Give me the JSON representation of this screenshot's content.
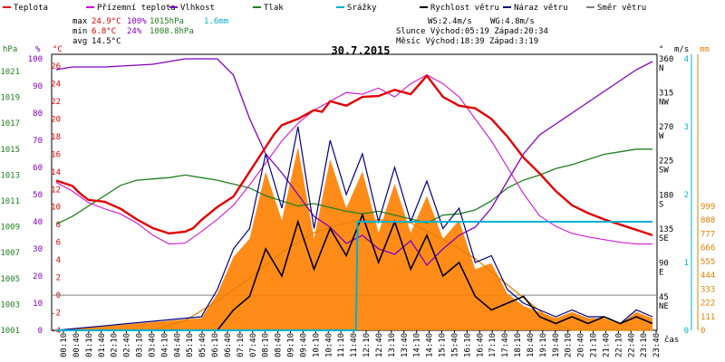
{
  "chart_data": {
    "type": "line",
    "title": "30.7.2015",
    "legend": [
      {
        "name": "Teplota",
        "color": "#e00000"
      },
      {
        "name": "Přízemní teplota",
        "color": "#d000d0"
      },
      {
        "name": "Vlhkost",
        "color": "#8000c0"
      },
      {
        "name": "Tlak",
        "color": "#208020"
      },
      {
        "name": "Srážky",
        "color": "#00b0d0"
      },
      {
        "name": "Rychlost větru",
        "color": "#000000"
      },
      {
        "name": "Náraz větru",
        "color": "#000080"
      },
      {
        "name": "Směr větru",
        "color": "#808080"
      }
    ],
    "stats": {
      "max": {
        "label": "max",
        "temp": "24.9°C",
        "hum": "100%",
        "press": "1015hPa",
        "rain": "1.6mm"
      },
      "min": {
        "label": "min",
        "temp": "6.8°C",
        "hum": "24%",
        "press": "1008.8hPa"
      },
      "avg": {
        "label": "avg",
        "temp": "14.5°C"
      }
    },
    "info": {
      "ws": "WS:2.4m/s",
      "wg": "WG:4.8m/s",
      "sun": "Slunce Východ:05:19 Západ:20:34",
      "moon": "Měsíc Východ:18:39 Západ:3:19"
    },
    "axes": {
      "hpa_label": "hPa",
      "pct_label": "%",
      "c_label": "°C",
      "deg_label": "°",
      "ms_label": "m/s",
      "mm_label": "mm",
      "x_label": "čas",
      "hpa_ticks": [
        "1021",
        "1019",
        "1017",
        "1015",
        "1013",
        "1011",
        "1009",
        "1007",
        "1005",
        "1003",
        "1001"
      ],
      "pct_ticks": [
        "100",
        "90",
        "80",
        "70",
        "60",
        "50",
        "40",
        "30",
        "20",
        "10",
        "0"
      ],
      "c_ticks": [
        "26",
        "24",
        "22",
        "20",
        "18",
        "16",
        "14",
        "12",
        "10",
        "8",
        "6",
        "4",
        "2",
        "0",
        "-2",
        "-4"
      ],
      "deg_ticks": [
        "360",
        "315",
        "270",
        "225",
        "180",
        "135",
        "90",
        "45"
      ],
      "dir_ticks": [
        "N",
        "NW",
        "W",
        "SW",
        "S",
        "SE",
        "E",
        "NE"
      ],
      "ms_ticks": [
        "4",
        "3",
        "2",
        "1",
        "0"
      ],
      "mm_ticks": [
        "999",
        "888",
        "777",
        "666",
        "555",
        "444",
        "333",
        "222",
        "111",
        "0"
      ],
      "x_ticks": [
        "00:10",
        "00:40",
        "01:10",
        "01:40",
        "02:10",
        "02:40",
        "03:10",
        "03:40",
        "04:10",
        "04:40",
        "05:10",
        "05:40",
        "06:10",
        "06:40",
        "07:10",
        "07:40",
        "08:10",
        "08:40",
        "09:10",
        "09:40",
        "10:10",
        "10:40",
        "11:10",
        "11:40",
        "12:10",
        "12:40",
        "13:10",
        "13:40",
        "14:10",
        "14:40",
        "15:10",
        "15:40",
        "16:10",
        "16:40",
        "17:10",
        "17:40",
        "18:10",
        "18:40",
        "19:10",
        "19:40",
        "20:10",
        "20:40",
        "21:10",
        "21:40",
        "22:10",
        "22:40",
        "23:10",
        "23:40"
      ]
    },
    "series": {
      "temperature": [
        [
          0,
          13.0
        ],
        [
          1,
          12.4
        ],
        [
          1.5,
          11.5
        ],
        [
          2,
          10.8
        ],
        [
          3,
          10.6
        ],
        [
          4,
          9.8
        ],
        [
          5,
          8.6
        ],
        [
          6,
          7.6
        ],
        [
          7,
          7.0
        ],
        [
          8,
          7.2
        ],
        [
          8.5,
          7.6
        ],
        [
          9,
          8.5
        ],
        [
          10,
          10.0
        ],
        [
          11,
          11.2
        ],
        [
          12,
          14.0
        ],
        [
          13,
          16.8
        ],
        [
          13.5,
          18.2
        ],
        [
          14,
          19.3
        ],
        [
          15,
          20.0
        ],
        [
          16,
          21.0
        ],
        [
          16.5,
          20.8
        ],
        [
          17,
          22.0
        ],
        [
          18,
          21.5
        ],
        [
          19,
          22.5
        ],
        [
          20,
          22.6
        ],
        [
          21,
          23.3
        ],
        [
          22,
          22.8
        ],
        [
          23,
          24.9
        ],
        [
          24,
          22.5
        ],
        [
          25,
          21.5
        ],
        [
          26,
          21.2
        ],
        [
          27,
          20.0
        ],
        [
          28,
          18.0
        ],
        [
          29,
          15.6
        ],
        [
          30,
          13.8
        ],
        [
          31,
          11.8
        ],
        [
          32,
          10.2
        ],
        [
          33,
          9.3
        ],
        [
          34,
          8.6
        ],
        [
          35,
          8.0
        ],
        [
          36,
          7.4
        ],
        [
          37,
          6.8
        ]
      ],
      "ground_temp": [
        [
          0,
          12.8
        ],
        [
          1,
          11.8
        ],
        [
          2,
          10.5
        ],
        [
          3,
          9.8
        ],
        [
          4,
          9.2
        ],
        [
          5,
          8.2
        ],
        [
          6,
          6.8
        ],
        [
          7,
          5.8
        ],
        [
          8,
          5.9
        ],
        [
          9,
          7.2
        ],
        [
          10,
          8.6
        ],
        [
          11,
          10.2
        ],
        [
          12,
          12.5
        ],
        [
          13,
          15.0
        ],
        [
          14,
          17.5
        ],
        [
          15,
          19.5
        ],
        [
          16,
          21.0
        ],
        [
          17,
          22.0
        ],
        [
          18,
          23.0
        ],
        [
          19,
          22.8
        ],
        [
          20,
          23.5
        ],
        [
          21,
          22.5
        ],
        [
          22,
          24.0
        ],
        [
          23,
          25.0
        ],
        [
          24,
          24.0
        ],
        [
          25,
          22.5
        ],
        [
          26,
          20.0
        ],
        [
          27,
          17.5
        ],
        [
          28,
          14.5
        ],
        [
          29,
          11.5
        ],
        [
          30,
          9.0
        ],
        [
          31,
          7.8
        ],
        [
          32,
          7.0
        ],
        [
          33,
          6.6
        ],
        [
          34,
          6.3
        ],
        [
          35,
          6.0
        ],
        [
          36,
          5.8
        ],
        [
          37,
          5.8
        ]
      ],
      "humidity": [
        [
          0,
          96
        ],
        [
          1,
          97
        ],
        [
          3,
          97
        ],
        [
          6,
          98
        ],
        [
          8,
          100
        ],
        [
          10,
          100
        ],
        [
          11,
          94
        ],
        [
          12,
          78
        ],
        [
          13,
          65
        ],
        [
          14,
          58
        ],
        [
          15,
          50
        ],
        [
          16,
          42
        ],
        [
          17,
          38
        ],
        [
          18,
          32
        ],
        [
          19,
          35
        ],
        [
          20,
          30
        ],
        [
          21,
          28
        ],
        [
          22,
          33
        ],
        [
          23,
          24
        ],
        [
          24,
          30
        ],
        [
          25,
          35
        ],
        [
          26,
          38
        ],
        [
          27,
          45
        ],
        [
          28,
          55
        ],
        [
          29,
          65
        ],
        [
          30,
          72
        ],
        [
          31,
          76
        ],
        [
          32,
          80
        ],
        [
          33,
          84
        ],
        [
          34,
          88
        ],
        [
          35,
          92
        ],
        [
          36,
          96
        ],
        [
          37,
          99
        ]
      ],
      "pressure": [
        [
          0,
          1009.2
        ],
        [
          1,
          1009.8
        ],
        [
          2,
          1010.6
        ],
        [
          3,
          1011.4
        ],
        [
          4,
          1012.2
        ],
        [
          5,
          1012.6
        ],
        [
          6,
          1012.7
        ],
        [
          7,
          1012.8
        ],
        [
          8,
          1013.0
        ],
        [
          9,
          1012.8
        ],
        [
          10,
          1012.6
        ],
        [
          11,
          1012.3
        ],
        [
          12,
          1012.0
        ],
        [
          13,
          1011.4
        ],
        [
          14,
          1011.0
        ],
        [
          15,
          1010.6
        ],
        [
          16,
          1010.8
        ],
        [
          17,
          1010.5
        ],
        [
          18,
          1010.2
        ],
        [
          19,
          1010.0
        ],
        [
          20,
          1010.2
        ],
        [
          21,
          1009.9
        ],
        [
          22,
          1009.6
        ],
        [
          23,
          1009.3
        ],
        [
          24,
          1009.9
        ],
        [
          25,
          1010.0
        ],
        [
          26,
          1010.3
        ],
        [
          27,
          1011.0
        ],
        [
          28,
          1012.0
        ],
        [
          29,
          1012.6
        ],
        [
          30,
          1013.0
        ],
        [
          31,
          1013.5
        ],
        [
          32,
          1013.8
        ],
        [
          33,
          1014.2
        ],
        [
          34,
          1014.6
        ],
        [
          35,
          1014.8
        ],
        [
          36,
          1015.0
        ],
        [
          37,
          1015.0
        ]
      ],
      "rain_mm": [
        [
          0,
          0
        ],
        [
          18.6,
          0
        ],
        [
          18.7,
          1.6
        ],
        [
          37,
          1.6
        ]
      ],
      "wind_speed": [
        [
          0,
          0
        ],
        [
          10,
          0
        ],
        [
          11,
          0.3
        ],
        [
          12,
          0.5
        ],
        [
          13,
          1.2
        ],
        [
          14,
          0.8
        ],
        [
          15,
          1.6
        ],
        [
          16,
          0.9
        ],
        [
          17,
          1.5
        ],
        [
          18,
          1.1
        ],
        [
          19,
          1.7
        ],
        [
          20,
          1.0
        ],
        [
          21,
          1.6
        ],
        [
          22,
          0.9
        ],
        [
          23,
          1.4
        ],
        [
          24,
          0.8
        ],
        [
          25,
          1.0
        ],
        [
          26,
          0.5
        ],
        [
          27,
          0.3
        ],
        [
          28,
          0.4
        ],
        [
          29,
          0.5
        ],
        [
          30,
          0.2
        ],
        [
          31,
          0.1
        ],
        [
          32,
          0.2
        ],
        [
          33,
          0.1
        ],
        [
          34,
          0.2
        ],
        [
          35,
          0.1
        ],
        [
          36,
          0.2
        ],
        [
          37,
          0.1
        ]
      ],
      "wind_gust": [
        [
          0,
          0
        ],
        [
          9,
          0.2
        ],
        [
          10,
          0.6
        ],
        [
          11,
          1.2
        ],
        [
          12,
          1.5
        ],
        [
          13,
          2.6
        ],
        [
          14,
          1.8
        ],
        [
          15,
          3.0
        ],
        [
          16,
          1.5
        ],
        [
          17,
          2.8
        ],
        [
          18,
          2.0
        ],
        [
          19,
          2.6
        ],
        [
          20,
          1.6
        ],
        [
          21,
          2.4
        ],
        [
          22,
          1.6
        ],
        [
          23,
          2.2
        ],
        [
          24,
          1.5
        ],
        [
          25,
          1.8
        ],
        [
          26,
          1.0
        ],
        [
          27,
          1.1
        ],
        [
          28,
          0.6
        ],
        [
          29,
          0.4
        ],
        [
          30,
          0.3
        ],
        [
          31,
          0.2
        ],
        [
          32,
          0.3
        ],
        [
          33,
          0.2
        ],
        [
          34,
          0.2
        ],
        [
          35,
          0.1
        ],
        [
          36,
          0.3
        ],
        [
          37,
          0.2
        ]
      ],
      "solar": [
        [
          0,
          0
        ],
        [
          6,
          0
        ],
        [
          8,
          3
        ],
        [
          10,
          9
        ],
        [
          12,
          16
        ],
        [
          14,
          24
        ],
        [
          16,
          30
        ],
        [
          18,
          33
        ],
        [
          20,
          34
        ],
        [
          22,
          33
        ],
        [
          24,
          28
        ],
        [
          26,
          22
        ],
        [
          28,
          14
        ],
        [
          30,
          6
        ],
        [
          31,
          2
        ],
        [
          32,
          0
        ],
        [
          37,
          0
        ]
      ]
    }
  }
}
